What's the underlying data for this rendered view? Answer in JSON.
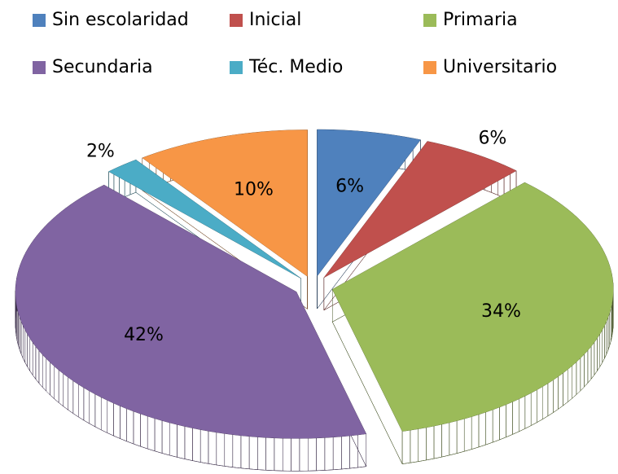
{
  "chart_data": {
    "type": "pie",
    "categories": [
      "Sin escolaridad",
      "Inicial",
      "Primaria",
      "Secundaria",
      "Téc. Medio",
      "Universitario"
    ],
    "values": [
      6,
      6,
      34,
      42,
      2,
      10
    ],
    "value_labels": [
      "6%",
      "6%",
      "34%",
      "42%",
      "2%",
      "10%"
    ],
    "colors": [
      "#4f81bd",
      "#c0504d",
      "#9bbb59",
      "#8064a2",
      "#4bacc6",
      "#f79646"
    ],
    "legend": "top"
  }
}
